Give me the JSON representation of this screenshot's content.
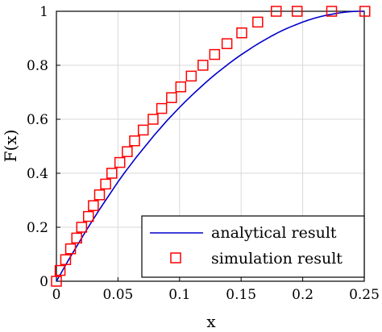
{
  "chart_data": {
    "type": "line",
    "xlabel": "x",
    "ylabel": "F(x)",
    "xlim": [
      0,
      0.25
    ],
    "ylim": [
      0,
      1
    ],
    "xticks": [
      "0",
      "0.05",
      "0.1",
      "0.15",
      "0.2",
      "0.25"
    ],
    "yticks": [
      "0",
      "0.2",
      "0.4",
      "0.6",
      "0.8",
      "1"
    ],
    "grid": true,
    "legend_position": "bottom-right",
    "series": [
      {
        "name": "analytical result",
        "style": "line",
        "color": "#0000cc",
        "x": [
          0,
          0.005,
          0.01,
          0.015,
          0.02,
          0.025,
          0.03,
          0.035,
          0.04,
          0.045,
          0.05,
          0.055,
          0.06,
          0.065,
          0.07,
          0.075,
          0.08,
          0.085,
          0.09,
          0.095,
          0.1,
          0.105,
          0.11,
          0.115,
          0.12,
          0.125,
          0.13,
          0.135,
          0.14,
          0.145,
          0.15,
          0.155,
          0.16,
          0.165,
          0.17,
          0.175,
          0.18,
          0.185,
          0.19,
          0.195,
          0.2,
          0.205,
          0.21,
          0.215,
          0.22,
          0.225,
          0.23,
          0.235,
          0.24,
          0.245,
          0.25
        ],
        "y": [
          0,
          0.04,
          0.08,
          0.118,
          0.156,
          0.194,
          0.23,
          0.266,
          0.3,
          0.334,
          0.368,
          0.4,
          0.43,
          0.46,
          0.488,
          0.516,
          0.544,
          0.57,
          0.596,
          0.62,
          0.644,
          0.667,
          0.689,
          0.71,
          0.731,
          0.751,
          0.77,
          0.788,
          0.806,
          0.823,
          0.839,
          0.854,
          0.869,
          0.883,
          0.896,
          0.909,
          0.921,
          0.932,
          0.942,
          0.951,
          0.96,
          0.968,
          0.975,
          0.981,
          0.986,
          0.99,
          0.994,
          0.997,
          0.999,
          1.0,
          1.0
        ]
      },
      {
        "name": "simulation result",
        "style": "marker-square",
        "color": "#ff0000",
        "x": [
          0,
          0.003,
          0.0075,
          0.0115,
          0.0165,
          0.0205,
          0.026,
          0.03,
          0.035,
          0.04,
          0.045,
          0.0515,
          0.0575,
          0.0635,
          0.0705,
          0.0785,
          0.0855,
          0.0935,
          0.101,
          0.1095,
          0.119,
          0.1285,
          0.1385,
          0.1505,
          0.1635,
          0.1785,
          0.1955,
          0.2235,
          0.2505
        ],
        "y": [
          0,
          0.04,
          0.08,
          0.12,
          0.16,
          0.2,
          0.24,
          0.28,
          0.32,
          0.36,
          0.4,
          0.44,
          0.48,
          0.52,
          0.56,
          0.6,
          0.64,
          0.68,
          0.72,
          0.76,
          0.8,
          0.84,
          0.88,
          0.92,
          0.96,
          1.0,
          1.0,
          1.0,
          1.0
        ]
      }
    ]
  }
}
